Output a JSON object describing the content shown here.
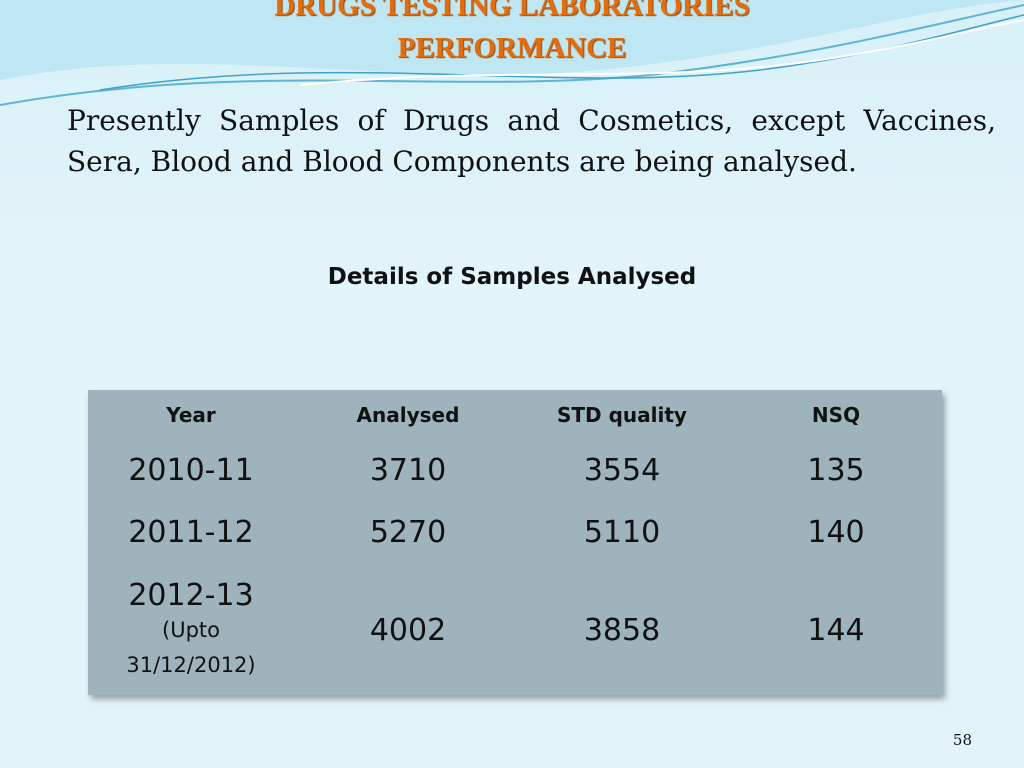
{
  "header": {
    "title_line1": "DRUGS TESTING LABORATORIES",
    "title_line2": "PERFORMANCE"
  },
  "body": {
    "paragraph": "Presently Samples of Drugs and Cosmetics, except Vaccines, Sera,  Blood and Blood Components are being analysed.",
    "subtitle": "Details of Samples Analysed"
  },
  "table": {
    "columns": [
      "Year",
      "Analysed",
      "STD quality",
      "NSQ"
    ],
    "rows": [
      {
        "year": "2010-11",
        "analysed": 3710,
        "std": 3554,
        "nsq": 135
      },
      {
        "year": "2011-12",
        "analysed": 5270,
        "std": 5110,
        "nsq": 140
      },
      {
        "year": "2012-13",
        "note": "(Upto 31/12/2012)",
        "analysed": 4002,
        "std": 3858,
        "nsq": 144
      }
    ]
  },
  "footer": {
    "page_number": "58"
  }
}
